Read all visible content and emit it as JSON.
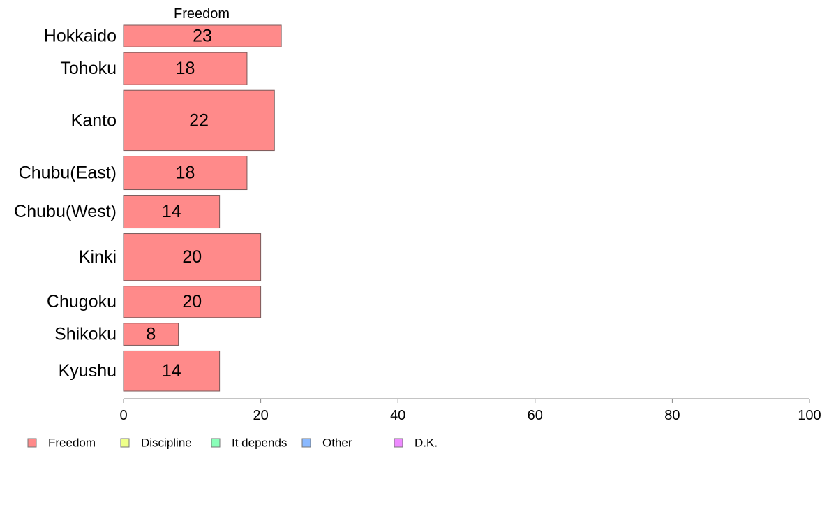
{
  "chart_data": {
    "type": "bar",
    "orientation": "horizontal",
    "stacked": true,
    "series_header": "Freedom",
    "categories": [
      "Hokkaido",
      "Tohoku",
      "Kanto",
      "Chubu(East)",
      "Chubu(West)",
      "Kinki",
      "Chugoku",
      "Shikoku",
      "Kyushu"
    ],
    "series": [
      {
        "name": "Freedom",
        "values": [
          23,
          18,
          22,
          18,
          14,
          20,
          20,
          8,
          14
        ],
        "data_labels": [
          "23",
          "18",
          "22",
          "18",
          "14",
          "20",
          "20",
          "8",
          "14"
        ]
      }
    ],
    "group_sizes": [
      0.65,
      0.96,
      1.8,
      1.0,
      0.98,
      1.4,
      0.94,
      0.66,
      1.2
    ],
    "xlim": [
      0,
      100
    ],
    "x_ticks": [
      "0",
      "20",
      "40",
      "60",
      "80",
      "100"
    ],
    "grid": false,
    "legend": {
      "placement": "bottom-left",
      "items": [
        {
          "label": "Freedom",
          "color": "#ff8a8a"
        },
        {
          "label": "Discipline",
          "color": "#eeff8a"
        },
        {
          "label": "It depends",
          "color": "#8affb9"
        },
        {
          "label": "Other",
          "color": "#8ab9ff"
        },
        {
          "label": "D.K.",
          "color": "#ee8aff"
        }
      ]
    },
    "bar_color": "#ff8a8a",
    "bar_stroke": "#7a5a5a",
    "axis_color": "#888888"
  }
}
